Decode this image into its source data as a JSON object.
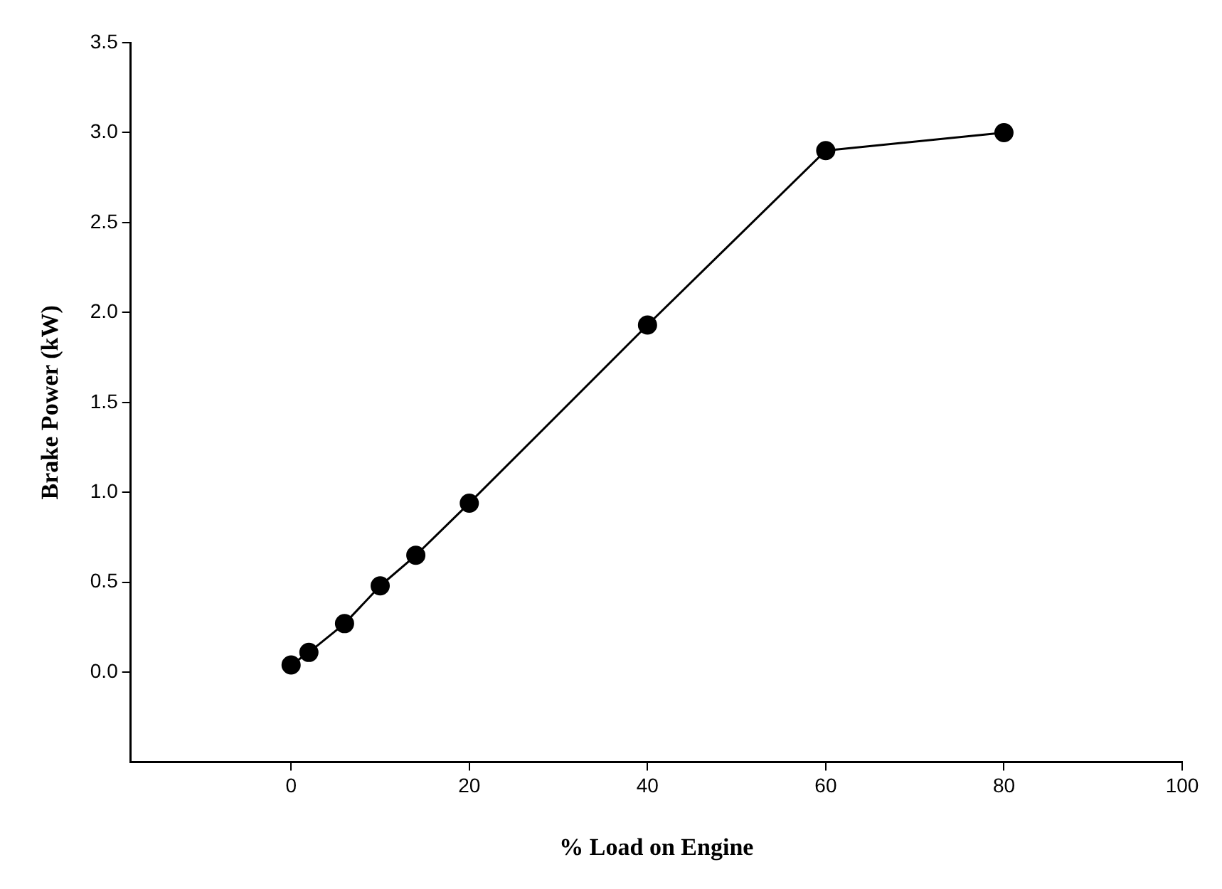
{
  "chart_data": {
    "type": "line",
    "xlabel": "% Load on Engine",
    "ylabel": "Brake Power (kW)",
    "x": [
      0,
      2,
      6,
      10,
      14,
      20,
      40,
      60,
      80
    ],
    "series": [
      {
        "color": "#000000",
        "values": [
          0.04,
          0.11,
          0.27,
          0.48,
          0.65,
          0.94,
          1.93,
          2.9,
          3.0
        ]
      }
    ],
    "xlim": [
      -18,
      100
    ],
    "xticks": [
      0,
      20,
      40,
      60,
      80,
      100
    ],
    "ylim": [
      -0.5,
      3.5
    ],
    "yticks": [
      {
        "value": 0,
        "label": "0.0"
      },
      {
        "value": 0.5,
        "label": "0.5"
      },
      {
        "value": 1,
        "label": "1.0"
      },
      {
        "value": 1.5,
        "label": "1.5"
      },
      {
        "value": 2,
        "label": "2.0"
      },
      {
        "value": 2.5,
        "label": "2.5"
      },
      {
        "value": 3,
        "label": "3.0"
      },
      {
        "value": 3.5,
        "label": "3.5"
      }
    ],
    "grid": false,
    "legend": false,
    "marker": "circle",
    "line_style": "solid"
  }
}
